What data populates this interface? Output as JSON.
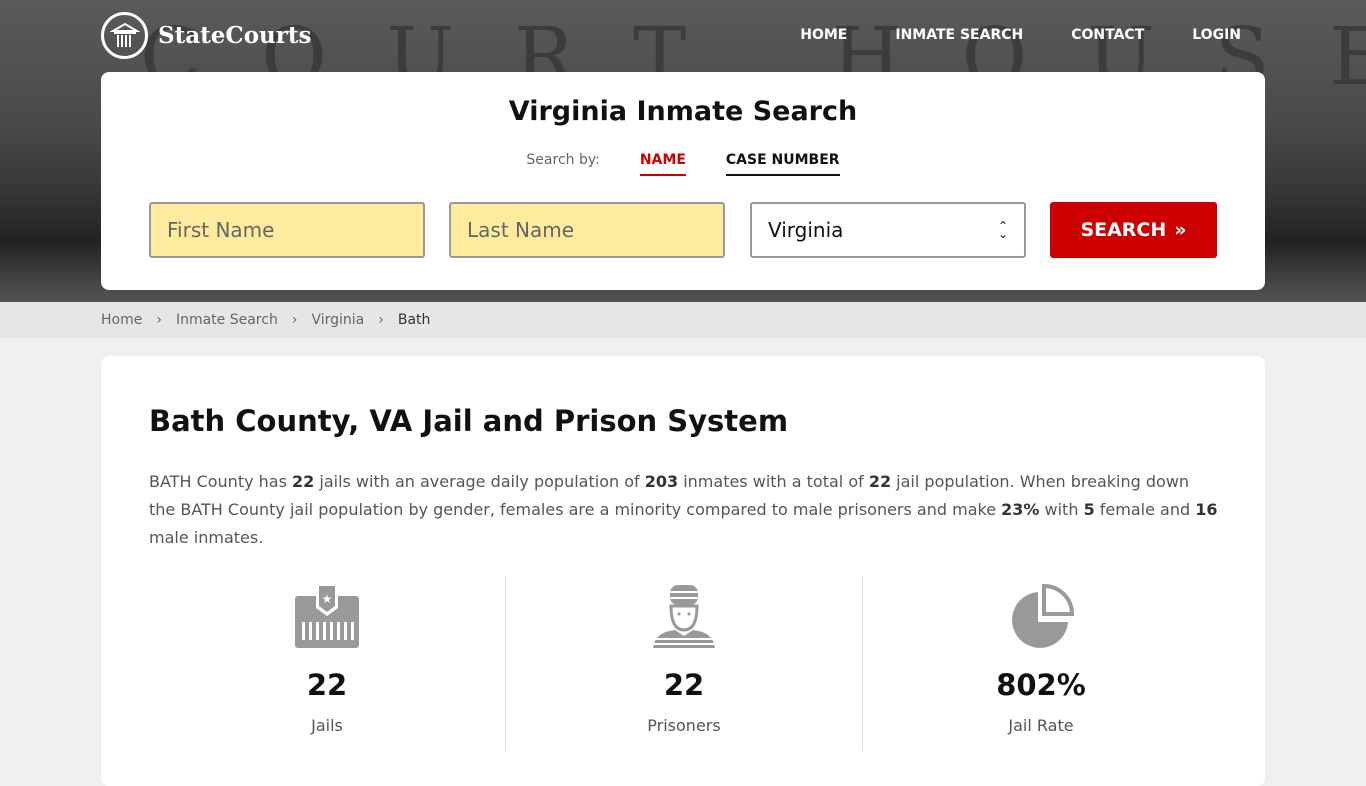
{
  "brand": {
    "name": "StateCourts",
    "hero_text": "COURT HOUSE"
  },
  "nav": [
    "HOME",
    "INMATE SEARCH",
    "CONTACT",
    "LOGIN"
  ],
  "search": {
    "title": "Virginia Inmate Search",
    "search_by": "Search by:",
    "tabs": [
      "NAME",
      "CASE NUMBER"
    ],
    "first_name_placeholder": "First Name",
    "last_name_placeholder": "Last Name",
    "state": "Virginia",
    "button": "SEARCH"
  },
  "breadcrumb": [
    "Home",
    "Inmate Search",
    "Virginia",
    "Bath"
  ],
  "main": {
    "title": "Bath County, VA Jail and Prison System",
    "p": [
      "BATH County has ",
      "22",
      " jails with an average daily population of ",
      "203",
      " inmates with a total of ",
      "22",
      " jail population. When breaking down the BATH County jail population by gender, females are a minority compared to male prisoners and make ",
      "23%",
      " with ",
      "5",
      " female and ",
      "16",
      " male inmates."
    ],
    "stats": [
      {
        "icon": "jail-icon",
        "value": "22",
        "label": "Jails"
      },
      {
        "icon": "prisoner-icon",
        "value": "22",
        "label": "Prisoners"
      },
      {
        "icon": "pie-chart-icon",
        "value": "802%",
        "label": "Jail Rate"
      }
    ]
  },
  "colors": {
    "accent": "#cc0000",
    "input_bg": "#feeb9e"
  }
}
